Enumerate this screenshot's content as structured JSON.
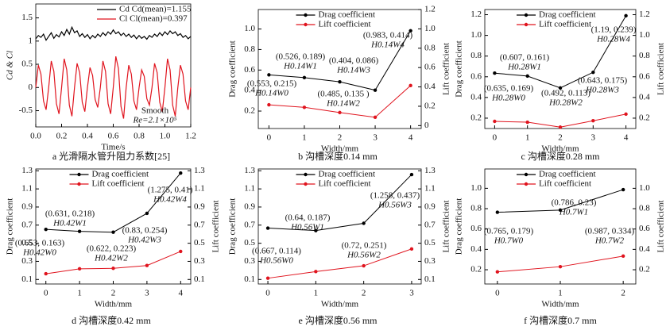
{
  "chart_data": [
    {
      "type": "line",
      "caption": "a 光滑隔水管升阻力系数[25]",
      "xlabel": "Time/s",
      "ylabel": "Cd & Cl",
      "legend": "upper right",
      "markers": false,
      "x": [
        0,
        0.02,
        0.04,
        0.06,
        0.08,
        0.1,
        0.12,
        0.14,
        0.16,
        0.18,
        0.2,
        0.22,
        0.24,
        0.26,
        0.28,
        0.3,
        0.32,
        0.34,
        0.36,
        0.38,
        0.4,
        0.42,
        0.44,
        0.46,
        0.48,
        0.5,
        0.52,
        0.54,
        0.56,
        0.58,
        0.6,
        0.62,
        0.64,
        0.66,
        0.68,
        0.7,
        0.72,
        0.74,
        0.76,
        0.78,
        0.8,
        0.82,
        0.84,
        0.86,
        0.88,
        0.9,
        0.92,
        0.94,
        0.96,
        0.98,
        1,
        1.02,
        1.04,
        1.06,
        1.08,
        1.1,
        1.12,
        1.14,
        1.16,
        1.18,
        1.2
      ],
      "xlim": [
        0,
        1.2
      ],
      "xticks": [
        {
          "value": 0,
          "label": "0.0"
        },
        0.2,
        0.4,
        0.6,
        0.8,
        {
          "value": 1,
          "label": "1.0"
        },
        1.2
      ],
      "ylim": [
        -0.85,
        1.8
      ],
      "yticks": [
        -0.5,
        0,
        0.5,
        1,
        1.5
      ],
      "series": [
        {
          "name": "Cd  Cd(mean)=1.155",
          "color": "#000000",
          "values": [
            1.05,
            1.12,
            1.08,
            1.15,
            1.02,
            1.1,
            1.18,
            1.06,
            1.14,
            1.09,
            1.2,
            1.12,
            1.25,
            1.15,
            1.3,
            1.18,
            1.22,
            1.1,
            1.16,
            1.08,
            1.14,
            1.05,
            1.12,
            1.07,
            1.15,
            1.1,
            1.18,
            1.12,
            1.2,
            1.15,
            1.24,
            1.16,
            1.2,
            1.12,
            1.17,
            1.1,
            1.15,
            1.08,
            1.13,
            1.05,
            1.12,
            1.06,
            1.1,
            1.04,
            1.12,
            1.08,
            1.15,
            1.1,
            1.18,
            1.12,
            1.2,
            1.14,
            1.22,
            1.16,
            1.2,
            1.12,
            1.16,
            1.08,
            1.12,
            1.05,
            1.1
          ]
        },
        {
          "name": "Cl  Cl(mean)=0.397",
          "color": "#e0141e",
          "values": [
            0,
            0.48,
            0.29,
            -0.29,
            -0.48,
            0,
            0.57,
            0.35,
            -0.35,
            -0.57,
            0,
            0.62,
            0.38,
            -0.38,
            -0.62,
            0,
            0.52,
            0.32,
            -0.32,
            -0.52,
            0,
            0.43,
            0.26,
            -0.26,
            -0.43,
            0,
            0.57,
            0.35,
            -0.35,
            -0.57,
            0,
            0.67,
            0.41,
            -0.41,
            -0.67,
            0,
            0.48,
            0.29,
            -0.29,
            -0.48,
            0,
            0.38,
            0.24,
            -0.24,
            -0.38,
            0,
            0.52,
            0.32,
            -0.32,
            -0.52,
            0,
            0.62,
            0.38,
            -0.38,
            -0.62,
            0,
            0.48,
            0.29,
            -0.29,
            -0.48,
            0
          ]
        }
      ],
      "annotations": [
        [
          "Smooth",
          "Re=2.1×10⁵"
        ]
      ]
    },
    {
      "type": "line",
      "caption": "b 沟槽深度0.14 mm",
      "xlabel": "Width/mm",
      "ylabel": "Drag coefficient",
      "y2label": "Lift coefficient",
      "legend": "upper center",
      "markers": true,
      "x": [
        0,
        1,
        2,
        3,
        4
      ],
      "xlim": [
        -0.3,
        4.3
      ],
      "xticks": [
        0,
        1,
        2,
        3,
        4
      ],
      "ylim": [
        0.03,
        1.19
      ],
      "yticks": [
        0.2,
        0.4,
        0.6,
        0.8,
        {
          "value": 1,
          "label": "1.0"
        }
      ],
      "y2lim": [
        -0.03,
        1.2
      ],
      "y2ticks": [
        0,
        0.2,
        0.4,
        0.6,
        0.8,
        {
          "value": 1,
          "label": "1.0"
        },
        1.2
      ],
      "series": [
        {
          "name": "Drag coefficient",
          "color": "#000000",
          "values": [
            0.553,
            0.526,
            0.485,
            0.404,
            0.983
          ]
        },
        {
          "name": "Lift coefficient",
          "color": "#e0141e",
          "axis": "y2",
          "values": [
            0.215,
            0.189,
            0.135,
            0.086,
            0.414
          ]
        }
      ],
      "annotations": [
        [
          "(0.553, 0.215)",
          "H0.14W0"
        ],
        [
          "(0.526, 0.189)",
          "H0.14W1"
        ],
        [
          "(0.485, 0.135 )",
          "H0.14W2"
        ],
        [
          "(0.404, 0.086)",
          "H0.14W3"
        ],
        [
          "(0.983, 0.414)",
          "H0.14W4"
        ]
      ]
    },
    {
      "type": "line",
      "caption": "c 沟槽深度0.28 mm",
      "xlabel": "Width/mm",
      "ylabel": "Drag coefficient",
      "y2label": "Lift coefficient",
      "legend": "upper center",
      "markers": true,
      "x": [
        0,
        1,
        2,
        3,
        4
      ],
      "xlim": [
        -0.3,
        4.3
      ],
      "xticks": [
        0,
        1,
        2,
        3,
        4
      ],
      "ylim": [
        0.1,
        1.25
      ],
      "yticks": [
        0.2,
        0.4,
        0.6,
        0.8,
        {
          "value": 1,
          "label": "1.0"
        },
        1.2
      ],
      "y2lim": [
        0.1,
        1.25
      ],
      "y2ticks": [
        0.2,
        0.4,
        0.6,
        0.8,
        {
          "value": 1,
          "label": "1.0"
        },
        1.2
      ],
      "series": [
        {
          "name": "Drag coefficient",
          "color": "#000000",
          "values": [
            0.635,
            0.607,
            0.492,
            0.643,
            1.19
          ]
        },
        {
          "name": "Lift coefficient",
          "color": "#e0141e",
          "axis": "y2",
          "values": [
            0.169,
            0.161,
            0.113,
            0.175,
            0.239
          ]
        }
      ],
      "annotations": [
        [
          "(0.635, 0.169)",
          "H0.28W0"
        ],
        [
          "(0.607, 0.161)",
          "H0.28W1"
        ],
        [
          "(0.492, 0.113)",
          "H0.28W2"
        ],
        [
          "(0.643, 0.175)",
          "H0.28W3"
        ],
        [
          "(1.19, 0.239)",
          "H0.28W4"
        ]
      ]
    },
    {
      "type": "line",
      "caption": "d 沟槽深度0.42 mm",
      "xlabel": "Width/mm",
      "ylabel": "Drag coefficient",
      "y2label": "Lift coefficient",
      "legend": "upper center",
      "markers": true,
      "x": [
        0,
        1,
        2,
        3,
        4
      ],
      "xlim": [
        -0.3,
        4.3
      ],
      "xticks": [
        0,
        1,
        2,
        3,
        4
      ],
      "ylim": [
        0.05,
        1.32
      ],
      "yticks": [
        0.1,
        0.3,
        0.5,
        0.7,
        0.9,
        1.1,
        1.3
      ],
      "y2lim": [
        0.05,
        1.32
      ],
      "y2ticks": [
        0.1,
        0.3,
        0.5,
        0.7,
        0.9,
        1.1,
        1.3
      ],
      "series": [
        {
          "name": "Drag coefficient",
          "color": "#000000",
          "values": [
            0.653,
            0.631,
            0.622,
            0.83,
            1.275
          ]
        },
        {
          "name": "Lift coefficient",
          "color": "#e0141e",
          "axis": "y2",
          "values": [
            0.163,
            0.218,
            0.223,
            0.254,
            0.41
          ]
        }
      ],
      "annotations": [
        [
          "(0.653, 0.163)",
          "H0.42W0"
        ],
        [
          "(0.631, 0.218)",
          "H0.42W1"
        ],
        [
          "(0.622, 0.223)",
          "H0.42W2"
        ],
        [
          "(0.83, 0.254)",
          "H0.42W3"
        ],
        [
          "(1.275, 0.41)",
          "H0.42W4"
        ]
      ]
    },
    {
      "type": "line",
      "caption": "e 沟槽深度0.56 mm",
      "xlabel": "Width/mm",
      "ylabel": "Drag coefficient",
      "y2label": "Lift coefficient",
      "legend": "upper center",
      "markers": true,
      "x": [
        0,
        1,
        2,
        3
      ],
      "xlim": [
        -0.2,
        3.2
      ],
      "xticks": [
        0,
        1,
        2,
        3
      ],
      "ylim": [
        0.05,
        1.32
      ],
      "yticks": [
        0.1,
        0.3,
        0.5,
        0.7,
        0.9,
        1.1,
        1.3
      ],
      "y2lim": [
        0.05,
        1.32
      ],
      "y2ticks": [
        0.1,
        0.3,
        0.5,
        0.7,
        0.9,
        1.1,
        1.3
      ],
      "series": [
        {
          "name": "Drag coefficient",
          "color": "#000000",
          "values": [
            0.667,
            0.64,
            0.72,
            1.258
          ]
        },
        {
          "name": "Lift coefficient",
          "color": "#e0141e",
          "axis": "y2",
          "values": [
            0.114,
            0.187,
            0.251,
            0.437
          ]
        }
      ],
      "annotations": [
        [
          "(0.667, 0.114)",
          "H0.56W0"
        ],
        [
          "(0.64, 0.187)",
          "H0.56W1"
        ],
        [
          "(0.72, 0.251)",
          "H0.56W2"
        ],
        [
          "(1.258, 0.437)",
          "H0.56W3"
        ]
      ]
    },
    {
      "type": "line",
      "caption": "f 沟槽深度0.7 mm",
      "xlabel": "Width/mm",
      "ylabel": "Drag coefficient",
      "y2label": "Lift coefficient",
      "legend": "upper center",
      "markers": true,
      "x": [
        0,
        1,
        2
      ],
      "xlim": [
        -0.2,
        2.2
      ],
      "xticks": [
        0,
        1,
        2
      ],
      "ylim": [
        0.06,
        1.19
      ],
      "yticks": [
        0.2,
        0.4,
        0.6,
        0.8,
        {
          "value": 1,
          "label": "1.0"
        }
      ],
      "y2lim": [
        0.06,
        1.19
      ],
      "y2ticks": [
        0.2,
        0.4,
        0.6,
        0.8,
        {
          "value": 1,
          "label": "1.0"
        }
      ],
      "series": [
        {
          "name": "Drag coefficient",
          "color": "#000000",
          "values": [
            0.765,
            0.786,
            0.987
          ]
        },
        {
          "name": "Lift coefficient",
          "color": "#e0141e",
          "axis": "y2",
          "values": [
            0.179,
            0.23,
            0.334
          ]
        }
      ],
      "annotations": [
        [
          "(0.765, 0.179)",
          "H0.7W0"
        ],
        [
          "(0.786, 0.23)",
          "H0.7W1"
        ],
        [
          "(0.987, 0.334)",
          "H0.7W2"
        ]
      ]
    }
  ]
}
